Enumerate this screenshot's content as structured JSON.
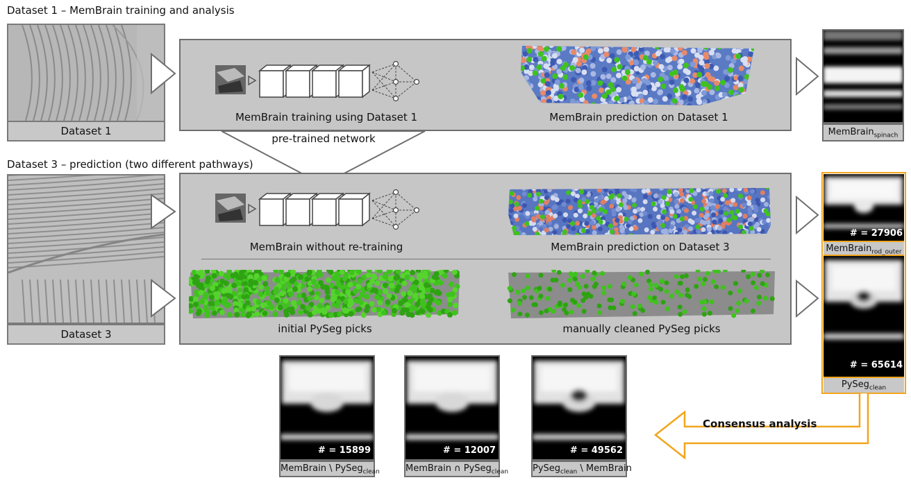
{
  "section1": {
    "title": "Dataset 1 – MemBrain training and analysis"
  },
  "section3": {
    "title": "Dataset 3 – prediction (two different pathways)"
  },
  "dataset1": {
    "label": "Dataset 1"
  },
  "dataset3": {
    "label": "Dataset 3"
  },
  "panel1": {
    "training_caption": "MemBrain training using Dataset 1",
    "prediction_caption": "MemBrain prediction on Dataset 1"
  },
  "pretrained": {
    "label": "pre-trained network"
  },
  "panel3": {
    "no_retrain_caption": "MemBrain without re-training",
    "prediction_caption": "MemBrain prediction on Dataset 3",
    "initial_caption": "initial PySeg picks",
    "cleaned_caption": "manually cleaned PySeg picks"
  },
  "averages": {
    "spinach": {
      "main": "MemBrain",
      "sub": "spinach"
    },
    "rod_outer": {
      "main": "MemBrain",
      "sub": "rod_outer",
      "count": "# = 27906"
    },
    "pyseg_clean": {
      "main": "PySeg",
      "sub": "clean",
      "count": "# = 65614"
    }
  },
  "consensus": {
    "label": "Consensus analysis"
  },
  "bottom": [
    {
      "pre": "MemBrain \\ PySeg",
      "sub": "clean",
      "post": "",
      "count": "# = 15899"
    },
    {
      "pre": "MemBrain ∩ PySeg",
      "sub": "clean",
      "post": "",
      "count": "# = 12007"
    },
    {
      "pre": "PySeg",
      "sub": "clean",
      "post": " \\ MemBrain",
      "count": "# = 49562"
    }
  ],
  "colors": {
    "highlight": "#f2a51c",
    "panel": "#c6c6c6",
    "border": "#6e6e6e",
    "membrain_blue": "#4a63b8",
    "pick_green": "#3fc21e"
  }
}
